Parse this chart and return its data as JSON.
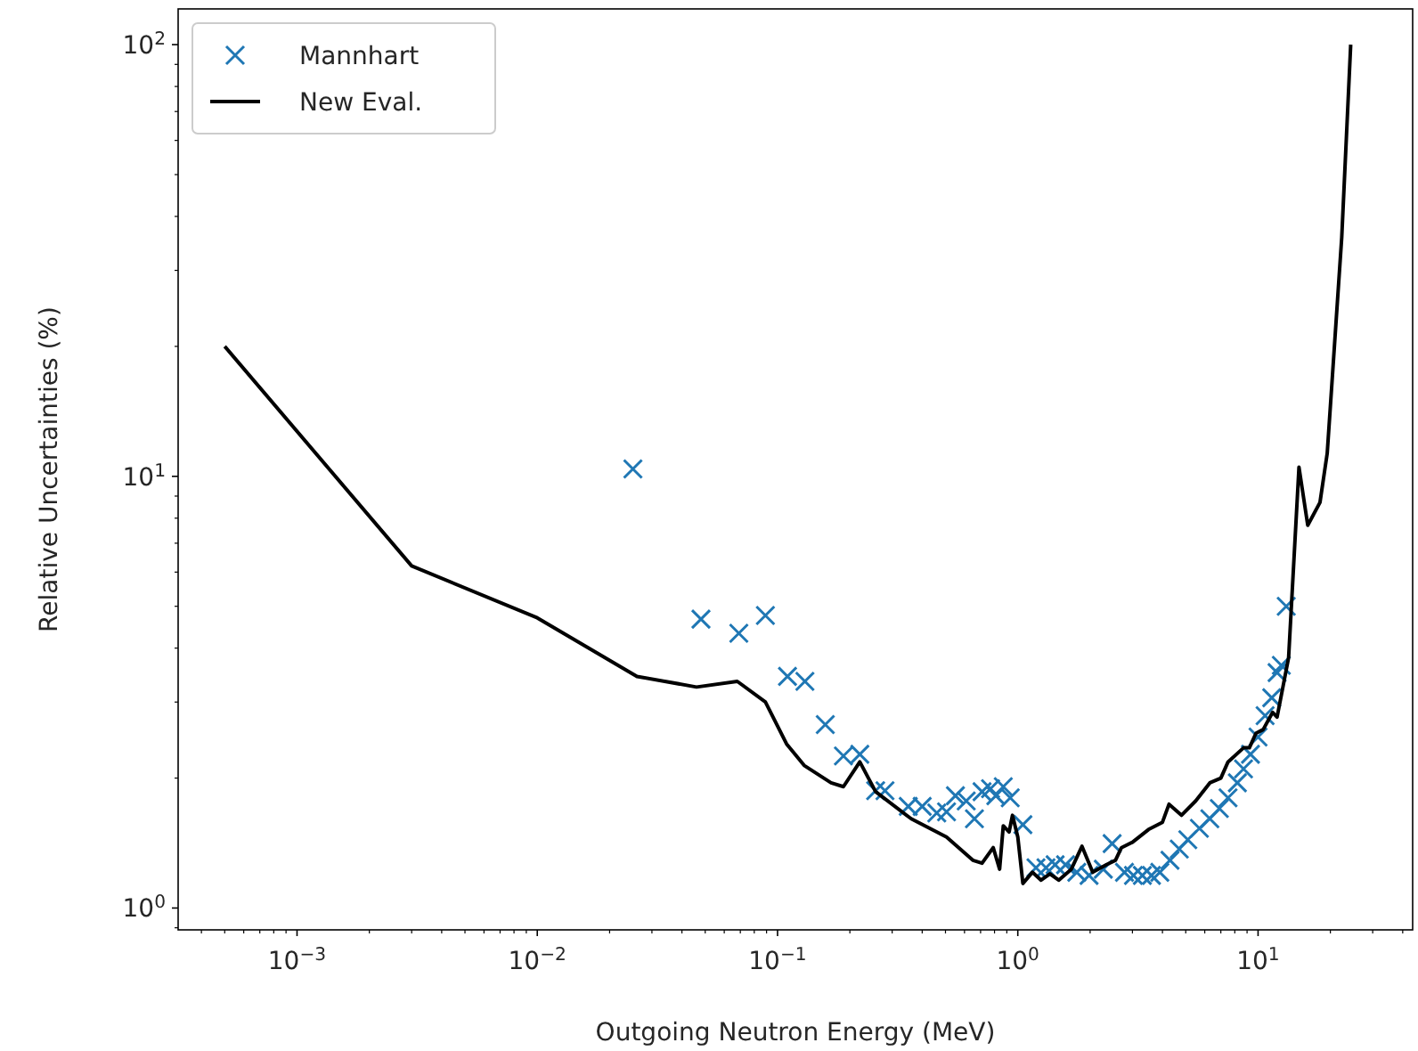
{
  "chart_data": {
    "type": "line",
    "xlabel": "Outgoing Neutron Energy (MeV)",
    "ylabel": "Relative Uncertainties (%)",
    "log": "xy",
    "grid": false,
    "legend": "top left",
    "xlim": [
      0.00032,
      44
    ],
    "ylim": [
      0.89,
      121
    ],
    "xticks": [
      {
        "value": 0.001,
        "label": "10$^{−3}$"
      },
      {
        "value": 0.01,
        "label": "10$^{−2}$"
      },
      {
        "value": 0.1,
        "label": "10$^{−1}$"
      },
      {
        "value": 1,
        "label": "10$^{0}$"
      },
      {
        "value": 10,
        "label": "10$^{1}$"
      }
    ],
    "yticks": [
      {
        "value": 1,
        "label": "10$^{0}$"
      },
      {
        "value": 10,
        "label": "10$^{1}$"
      },
      {
        "value": 100,
        "label": "10$^{2}$"
      }
    ],
    "series": [
      {
        "name": "Mannhart",
        "type": "scatter",
        "marker": "cross",
        "color": "#1f77b4",
        "x": [
          0.025,
          0.048,
          0.069,
          0.089,
          0.11,
          0.13,
          0.158,
          0.188,
          0.22,
          0.256,
          0.28,
          0.35,
          0.4,
          0.46,
          0.505,
          0.55,
          0.61,
          0.66,
          0.71,
          0.77,
          0.81,
          0.87,
          0.93,
          1.05,
          1.19,
          1.31,
          1.43,
          1.58,
          1.76,
          1.98,
          2.27,
          2.47,
          2.78,
          3.03,
          3.3,
          3.6,
          3.9,
          4.3,
          4.7,
          5.1,
          5.7,
          6.3,
          6.9,
          7.5,
          8.2,
          8.7,
          9.3,
          10.0,
          10.7,
          11.4,
          12.0,
          12.5,
          13.1
        ],
        "values": [
          10.4,
          4.67,
          4.33,
          4.76,
          3.44,
          3.35,
          2.66,
          2.25,
          2.27,
          1.87,
          1.87,
          1.72,
          1.72,
          1.66,
          1.67,
          1.82,
          1.77,
          1.61,
          1.86,
          1.89,
          1.82,
          1.91,
          1.8,
          1.56,
          1.24,
          1.24,
          1.26,
          1.26,
          1.21,
          1.19,
          1.23,
          1.41,
          1.21,
          1.19,
          1.19,
          1.19,
          1.21,
          1.29,
          1.37,
          1.44,
          1.53,
          1.61,
          1.7,
          1.8,
          1.95,
          2.1,
          2.27,
          2.49,
          2.79,
          3.07,
          3.51,
          3.65,
          5.0
        ]
      },
      {
        "name": "New Eval.",
        "marker": "none",
        "line_style": "solid",
        "color": "#000000",
        "x": [
          0.0005,
          0.003,
          0.01,
          0.026,
          0.046,
          0.068,
          0.089,
          0.109,
          0.129,
          0.167,
          0.188,
          0.22,
          0.256,
          0.36,
          0.505,
          0.65,
          0.71,
          0.79,
          0.84,
          0.87,
          0.92,
          0.95,
          1.0,
          1.05,
          1.15,
          1.25,
          1.36,
          1.48,
          1.67,
          1.85,
          2.05,
          2.34,
          2.55,
          2.7,
          3.0,
          3.5,
          4.0,
          4.26,
          4.8,
          5.5,
          6.3,
          7.0,
          7.5,
          8.7,
          9.2,
          9.8,
          10.5,
          11.5,
          12.0,
          13.4,
          14.8,
          16.1,
          18.1,
          19.4,
          22.3,
          24.3
        ],
        "values": [
          20,
          6.2,
          4.7,
          3.44,
          3.25,
          3.35,
          3.0,
          2.4,
          2.14,
          1.95,
          1.91,
          2.18,
          1.86,
          1.61,
          1.46,
          1.29,
          1.27,
          1.38,
          1.23,
          1.55,
          1.5,
          1.64,
          1.46,
          1.14,
          1.21,
          1.16,
          1.2,
          1.16,
          1.23,
          1.39,
          1.21,
          1.26,
          1.29,
          1.38,
          1.42,
          1.52,
          1.58,
          1.74,
          1.64,
          1.77,
          1.95,
          2.0,
          2.18,
          2.35,
          2.35,
          2.54,
          2.59,
          2.84,
          2.77,
          3.8,
          10.5,
          7.7,
          8.7,
          11.3,
          35.8,
          100
        ]
      }
    ]
  }
}
